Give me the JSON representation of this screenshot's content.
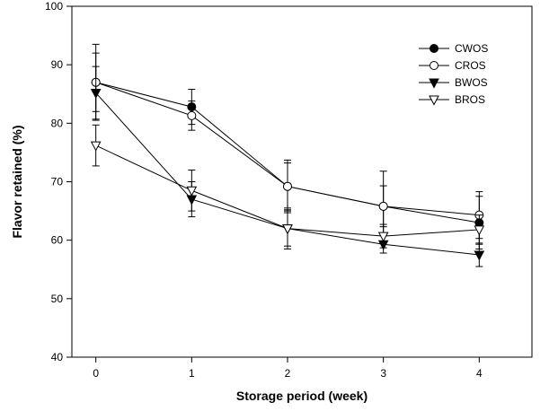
{
  "chart_data": {
    "type": "line",
    "title": "",
    "xlabel": "Storage period (week)",
    "ylabel": "Flavor retained (%)",
    "xlim": [
      -0.25,
      4.55
    ],
    "ylim": [
      40,
      100
    ],
    "x": [
      0,
      1,
      2,
      3,
      4
    ],
    "xticks": [
      0,
      1,
      2,
      3,
      4
    ],
    "yticks": [
      40,
      50,
      60,
      70,
      80,
      90,
      100
    ],
    "grid": false,
    "legend_position": "top-right",
    "series": [
      {
        "name": "CWOS",
        "marker": "circle-filled",
        "values": [
          87.0,
          82.8,
          69.2,
          65.8,
          63.0
        ],
        "error": [
          6.5,
          3.0,
          4.5,
          6.0,
          4.5
        ]
      },
      {
        "name": "CROS",
        "marker": "circle-open",
        "values": [
          87.0,
          81.3,
          69.2,
          65.8,
          64.3
        ],
        "error": [
          5.0,
          2.5,
          4.0,
          3.5,
          4.0
        ]
      },
      {
        "name": "BWOS",
        "marker": "triangle-down-filled",
        "values": [
          85.2,
          67.0,
          62.0,
          59.3,
          57.5
        ],
        "error": [
          4.5,
          3.0,
          3.5,
          1.5,
          2.0
        ]
      },
      {
        "name": "BROS",
        "marker": "triangle-down-open",
        "values": [
          76.2,
          68.5,
          62.0,
          60.7,
          61.8
        ],
        "error": [
          3.5,
          3.5,
          3.0,
          2.0,
          2.5
        ]
      }
    ],
    "colors": {
      "line": "#000000",
      "background": "#ffffff"
    }
  }
}
